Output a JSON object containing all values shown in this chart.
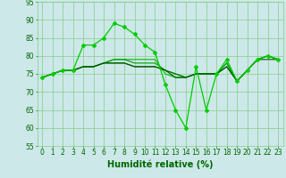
{
  "series": [
    {
      "x": [
        0,
        1,
        2,
        3,
        4,
        5,
        6,
        7,
        8,
        9,
        10,
        11,
        12,
        13,
        14,
        15,
        16,
        17,
        18,
        19,
        20,
        21,
        22,
        23
      ],
      "y": [
        74,
        75,
        76,
        76,
        83,
        83,
        85,
        89,
        88,
        86,
        83,
        81,
        72,
        65,
        60,
        77,
        65,
        75,
        79,
        73,
        76,
        79,
        80,
        79
      ],
      "color": "#00cc00",
      "linewidth": 0.9,
      "marker": "D",
      "markersize": 2.0
    },
    {
      "x": [
        0,
        1,
        2,
        3,
        4,
        5,
        6,
        7,
        8,
        9,
        10,
        11,
        12,
        13,
        14,
        15,
        16,
        17,
        18,
        19,
        20,
        21,
        22,
        23
      ],
      "y": [
        74,
        75,
        76,
        76,
        77,
        77,
        78,
        79,
        79,
        79,
        79,
        79,
        75,
        74,
        74,
        75,
        75,
        75,
        78,
        73,
        76,
        79,
        80,
        79
      ],
      "color": "#00bb00",
      "linewidth": 0.8,
      "marker": null,
      "markersize": 0
    },
    {
      "x": [
        0,
        1,
        2,
        3,
        4,
        5,
        6,
        7,
        8,
        9,
        10,
        11,
        12,
        13,
        14,
        15,
        16,
        17,
        18,
        19,
        20,
        21,
        22,
        23
      ],
      "y": [
        74,
        75,
        76,
        76,
        77,
        77,
        78,
        79,
        79,
        78,
        78,
        78,
        76,
        75,
        74,
        75,
        75,
        75,
        78,
        73,
        76,
        79,
        80,
        79
      ],
      "color": "#009900",
      "linewidth": 0.8,
      "marker": null,
      "markersize": 0
    },
    {
      "x": [
        0,
        1,
        2,
        3,
        4,
        5,
        6,
        7,
        8,
        9,
        10,
        11,
        12,
        13,
        14,
        15,
        16,
        17,
        18,
        19,
        20,
        21,
        22,
        23
      ],
      "y": [
        74,
        75,
        76,
        76,
        77,
        77,
        78,
        78,
        78,
        77,
        77,
        77,
        76,
        75,
        74,
        75,
        75,
        75,
        77,
        73,
        76,
        79,
        80,
        79
      ],
      "color": "#007700",
      "linewidth": 0.8,
      "marker": null,
      "markersize": 0
    },
    {
      "x": [
        0,
        1,
        2,
        3,
        4,
        5,
        6,
        7,
        8,
        9,
        10,
        11,
        12,
        13,
        14,
        15,
        16,
        17,
        18,
        19,
        20,
        21,
        22,
        23
      ],
      "y": [
        74,
        75,
        76,
        76,
        77,
        77,
        78,
        78,
        78,
        77,
        77,
        77,
        76,
        74,
        74,
        75,
        75,
        75,
        77,
        73,
        76,
        79,
        79,
        79
      ],
      "color": "#005500",
      "linewidth": 0.8,
      "marker": null,
      "markersize": 0
    }
  ],
  "xlabel": "Humidité relative (%)",
  "xlabel_fontsize": 7,
  "xlabel_color": "#006600",
  "xlabel_bold": true,
  "ylim": [
    55,
    95
  ],
  "xlim": [
    -0.5,
    23.5
  ],
  "yticks": [
    55,
    60,
    65,
    70,
    75,
    80,
    85,
    90,
    95
  ],
  "xticks": [
    0,
    1,
    2,
    3,
    4,
    5,
    6,
    7,
    8,
    9,
    10,
    11,
    12,
    13,
    14,
    15,
    16,
    17,
    18,
    19,
    20,
    21,
    22,
    23
  ],
  "grid_color": "#88cc88",
  "grid_alpha": 1.0,
  "background_color": "#cce8e8",
  "tick_fontsize": 5.5,
  "tick_color": "#006600"
}
